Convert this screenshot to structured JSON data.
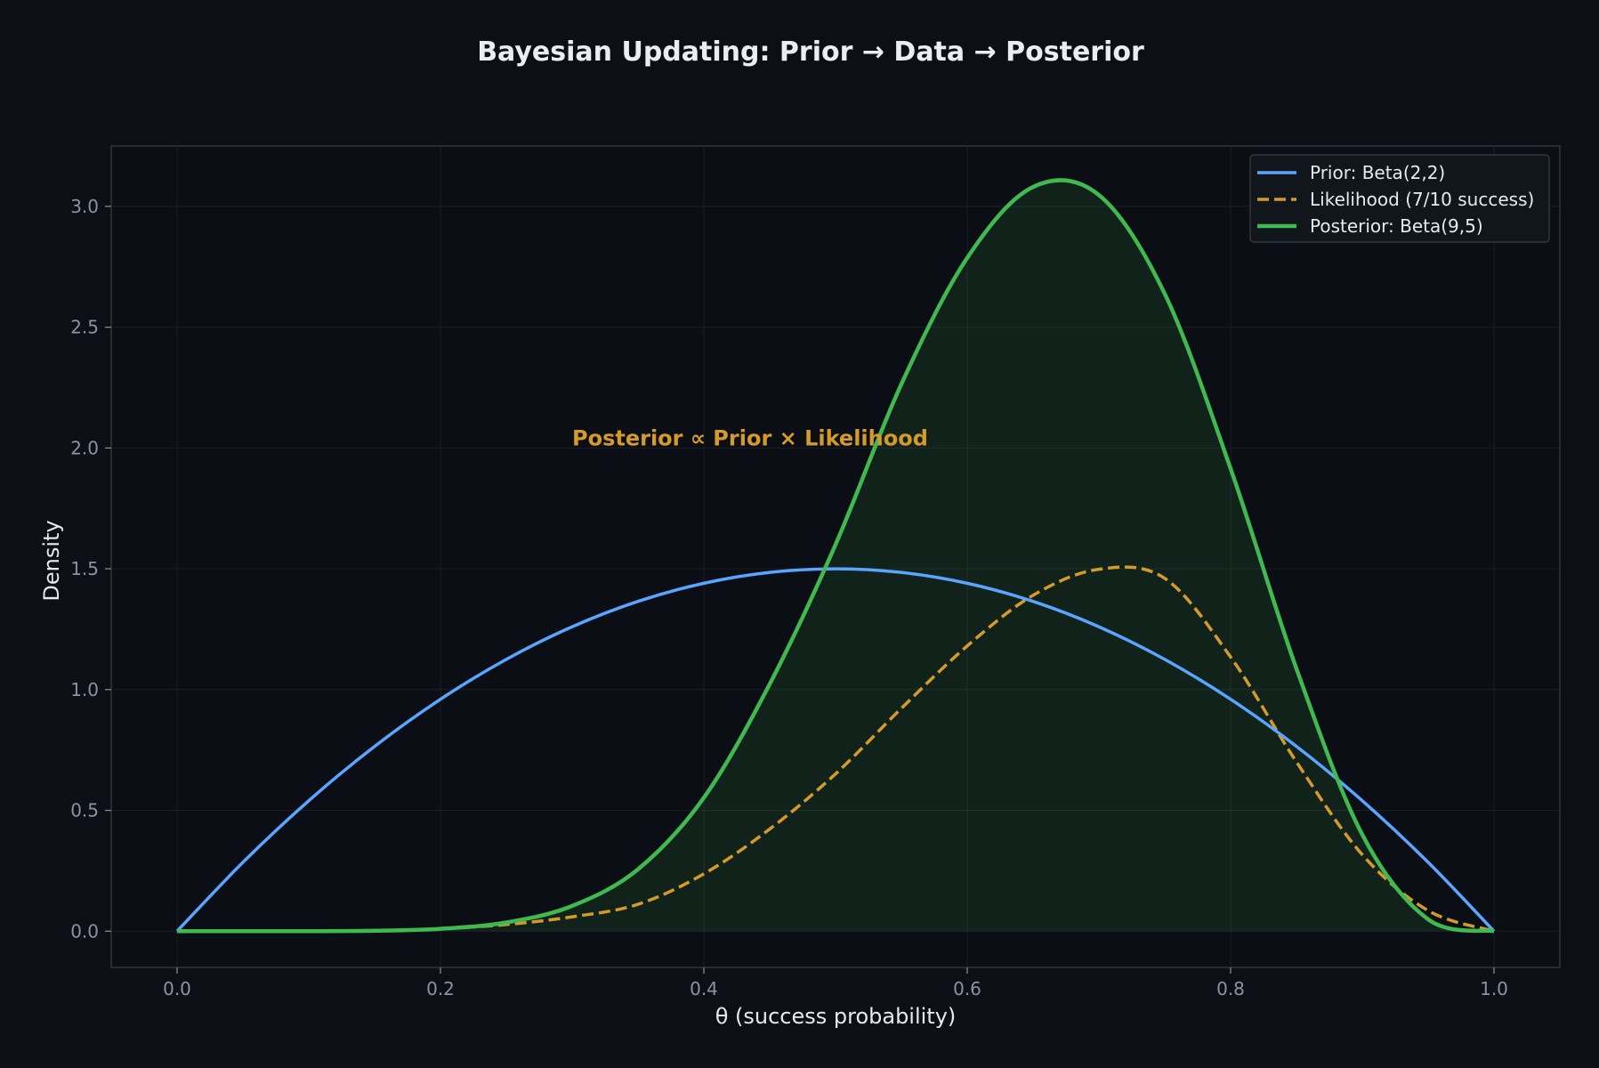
{
  "chart_data": {
    "type": "line",
    "title": "Bayesian Updating: Prior → Data → Posterior",
    "xlabel": "θ (success probability)",
    "ylabel": "Density",
    "xlim": [
      -0.05,
      1.05
    ],
    "ylim": [
      -0.15,
      3.25
    ],
    "xticks": [
      0.0,
      0.2,
      0.4,
      0.6,
      0.8,
      1.0
    ],
    "xtick_labels": [
      "0.0",
      "0.2",
      "0.4",
      "0.6",
      "0.8",
      "1.0"
    ],
    "yticks": [
      0.0,
      0.5,
      1.0,
      1.5,
      2.0,
      2.5,
      3.0
    ],
    "ytick_labels": [
      "0.0",
      "0.5",
      "1.0",
      "1.5",
      "2.0",
      "2.5",
      "3.0"
    ],
    "grid": true,
    "legend_position": "top-right",
    "annotation": {
      "text": "Posterior ∝ Prior × Likelihood",
      "x": 0.3,
      "y": 2.0,
      "color": "#d49a2a"
    },
    "x": [
      0.0,
      0.05,
      0.1,
      0.15,
      0.2,
      0.25,
      0.3,
      0.35,
      0.4,
      0.45,
      0.5,
      0.55,
      0.6,
      0.65,
      0.7,
      0.75,
      0.8,
      0.85,
      0.9,
      0.95,
      1.0
    ],
    "series": [
      {
        "name": "Prior: Beta(2,2)",
        "color": "#58a6ff",
        "style": "solid",
        "values": [
          0.0,
          0.285,
          0.54,
          0.765,
          0.96,
          1.125,
          1.26,
          1.365,
          1.44,
          1.485,
          1.5,
          1.485,
          1.44,
          1.365,
          1.26,
          1.125,
          0.96,
          0.765,
          0.54,
          0.285,
          0.0
        ]
      },
      {
        "name": "Likelihood (7/10 success)",
        "color": "#d49a2a",
        "style": "dashed",
        "values": [
          0.0,
          0.0,
          0.0003,
          0.0024,
          0.0099,
          0.0276,
          0.0595,
          0.1113,
          0.2373,
          0.4227,
          0.6509,
          0.9225,
          1.1807,
          1.3902,
          1.4979,
          1.4603,
          1.1348,
          0.7006,
          0.3167,
          0.0851,
          0.0
        ]
      },
      {
        "name": "Posterior: Beta(9,5)",
        "color": "#3fb950",
        "style": "solid",
        "fill": true,
        "values": [
          0.0,
          0.0,
          0.0001,
          0.0018,
          0.0099,
          0.036,
          0.1046,
          0.2561,
          0.5526,
          1.0226,
          1.6,
          2.2646,
          2.7867,
          3.0804,
          3.0468,
          2.6378,
          1.9144,
          1.0865,
          0.3996,
          0.0493,
          0.0
        ]
      }
    ]
  }
}
